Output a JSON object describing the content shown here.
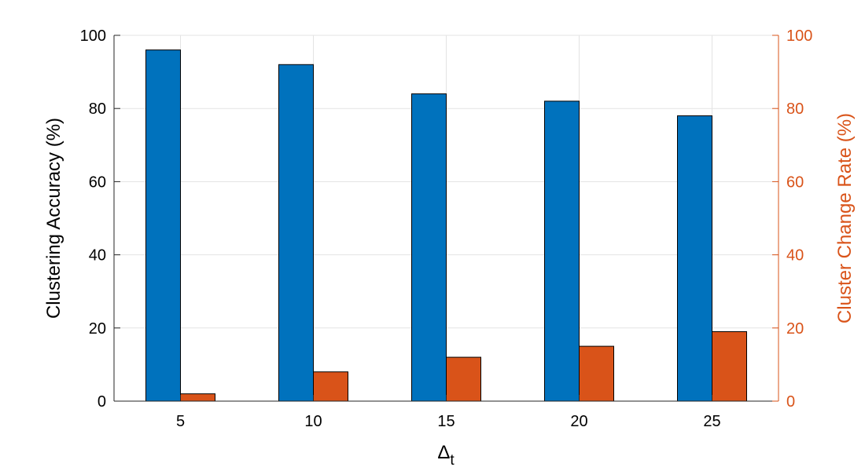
{
  "chart_data": {
    "type": "bar",
    "categories": [
      "5",
      "10",
      "15",
      "20",
      "25"
    ],
    "xlabel": "Δ",
    "xlabel_subscript": "t",
    "ylabel_left": "Clustering Accuracy (%)",
    "ylabel_right": "Cluster Change Rate (%)",
    "ylim_left": [
      0,
      100
    ],
    "ylim_right": [
      0,
      100
    ],
    "yticks_left": [
      "0",
      "20",
      "40",
      "60",
      "80",
      "100"
    ],
    "yticks_right": [
      "0",
      "20",
      "40",
      "60",
      "80",
      "100"
    ],
    "grid": true,
    "series": [
      {
        "axis": "left",
        "color": "#0072BD",
        "values": [
          96,
          92,
          84,
          82,
          78
        ]
      },
      {
        "axis": "right",
        "color": "#D95319",
        "values": [
          2,
          8,
          12,
          15,
          19
        ]
      }
    ],
    "right_axis_color": "#D95319"
  }
}
